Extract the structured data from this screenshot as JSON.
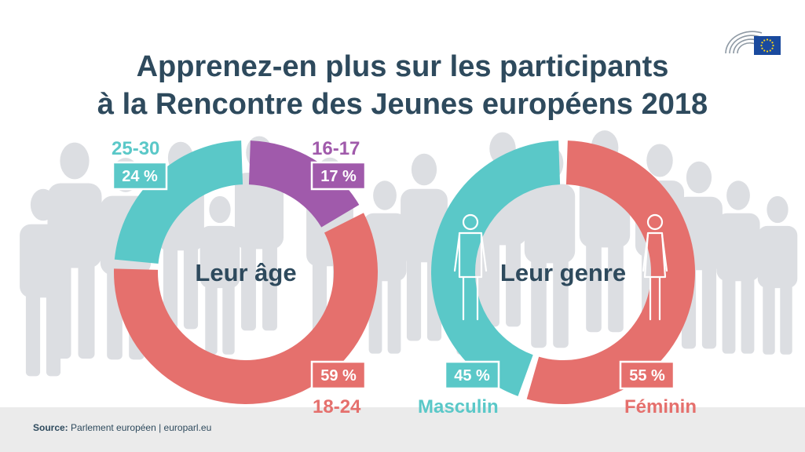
{
  "title_line1": "Apprenez-en plus sur les participants",
  "title_line2": "à la Rencontre des Jeunes européens 2018",
  "source_label": "Source:",
  "source_text": "Parlement européen | europarl.eu",
  "colors": {
    "title": "#2e4a5d",
    "teal": "#5ac8c8",
    "purple": "#a05aab",
    "coral": "#e5706d",
    "silhouette": "#dcdee2",
    "footer": "#ebebeb",
    "eu_blue": "#1a4a9e",
    "eu_star": "#ffd617"
  },
  "icons": [
    "parliament-logo-icon",
    "eu-flag-icon",
    "male-figure-icon",
    "female-figure-icon",
    "crowd-silhouette-icon"
  ],
  "chart_data": [
    {
      "type": "pie",
      "title": "Leur âge",
      "categories": [
        "16-17",
        "18-24",
        "25-30"
      ],
      "values": [
        17,
        59,
        24
      ],
      "value_labels": [
        "17 %",
        "59 %",
        "24 %"
      ],
      "colors": [
        "#a05aab",
        "#e5706d",
        "#5ac8c8"
      ]
    },
    {
      "type": "pie",
      "title": "Leur genre",
      "categories": [
        "Féminin",
        "Masculin"
      ],
      "values": [
        55,
        45
      ],
      "value_labels": [
        "55 %",
        "45 %"
      ],
      "colors": [
        "#e5706d",
        "#5ac8c8"
      ]
    }
  ]
}
